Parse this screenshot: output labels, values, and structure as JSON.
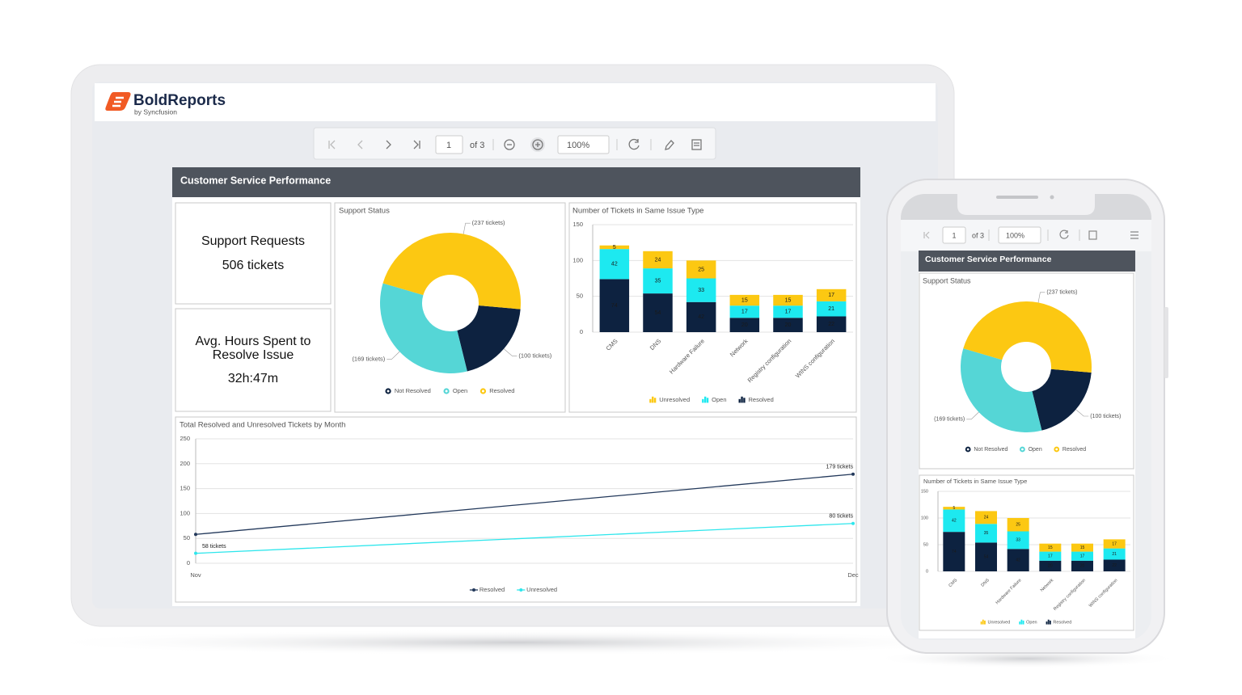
{
  "brand": {
    "first": "Bold",
    "second": "Reports",
    "tagline": "by Syncfusion"
  },
  "toolbar": {
    "page": "1",
    "page_count": "of 3",
    "zoom": "100%"
  },
  "report": {
    "title": "Customer Service Performance",
    "kpis": [
      {
        "label": "Support Requests",
        "value": "506 tickets"
      },
      {
        "label": "Avg. Hours Spent to Resolve Issue",
        "value": "32h:47m"
      }
    ]
  },
  "chart_data": [
    {
      "type": "pie",
      "title": "Support Status",
      "categories": [
        "Not Resolved",
        "Open",
        "Resolved"
      ],
      "values": [
        100,
        169,
        237
      ],
      "value_labels": [
        "(100 tickets)",
        "(169 tickets)",
        "(237 tickets)"
      ],
      "colors": [
        "#0d2240",
        "#55d6d6",
        "#fcc812"
      ],
      "legend": "bottom"
    },
    {
      "type": "bar",
      "stacked": true,
      "title": "Number of Tickets in Same Issue Type",
      "categories": [
        "CMS",
        "DNS",
        "Hardware Failure",
        "Network",
        "Registry configuration",
        "WINS configuration"
      ],
      "series": [
        {
          "name": "Unresolved",
          "color": "#fcc812",
          "values": [
            5,
            24,
            25,
            15,
            15,
            17
          ]
        },
        {
          "name": "Open",
          "color": "#1de9f0",
          "values": [
            42,
            35,
            33,
            17,
            17,
            21
          ]
        },
        {
          "name": "Resolved",
          "color": "#0d2240",
          "values": [
            74,
            54,
            42,
            20,
            20,
            22
          ]
        }
      ],
      "ylim": [
        0,
        150
      ],
      "yticks": [
        0,
        50,
        100,
        150
      ],
      "grid": true,
      "legend": "bottom"
    },
    {
      "type": "line",
      "title": "Total Resolved and Unresolved Tickets by Month",
      "x": [
        "Nov",
        "Dec"
      ],
      "series": [
        {
          "name": "Resolved",
          "color": "#23395b",
          "values": [
            58,
            179
          ],
          "value_labels": [
            "58 tickets",
            "179 tickets"
          ]
        },
        {
          "name": "Unresolved",
          "color": "#2ee6ec",
          "values": [
            20,
            80
          ],
          "value_labels": [
            null,
            "80 tickets"
          ]
        }
      ],
      "ylim": [
        0,
        250
      ],
      "yticks": [
        0,
        50,
        100,
        150,
        200,
        250
      ],
      "grid": true,
      "legend": "bottom"
    }
  ]
}
